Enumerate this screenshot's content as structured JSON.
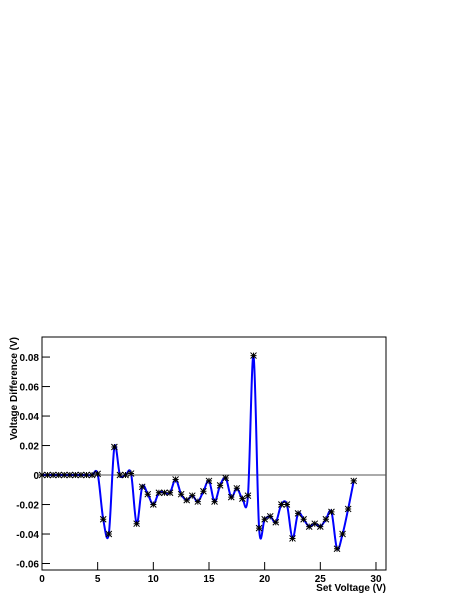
{
  "chart_data": {
    "type": "line",
    "x_label": "Set Voltage (V)",
    "y_label": "Voltage Difference (V)",
    "x": [
      0,
      0.5,
      1,
      1.5,
      2,
      2.5,
      3,
      3.5,
      4,
      4.5,
      5,
      5.5,
      6,
      6.5,
      7,
      7.5,
      8,
      8.5,
      9,
      9.5,
      10,
      10.5,
      11,
      11.5,
      12,
      12.5,
      13,
      13.5,
      14,
      14.5,
      15,
      15.5,
      16,
      16.5,
      17,
      17.5,
      18,
      18.5,
      19,
      19.5,
      20,
      20.5,
      21,
      21.5,
      22,
      22.5,
      23,
      23.5,
      24,
      24.5,
      25,
      25.5,
      26,
      26.5,
      27,
      27.5,
      28
    ],
    "series": [
      {
        "color": "#0000ff",
        "values": [
          0,
          0,
          0,
          0,
          0,
          0,
          0,
          0,
          0,
          0,
          0.0008,
          -0.03,
          -0.04,
          0.019,
          0,
          0,
          0.001,
          -0.033,
          -0.008,
          -0.013,
          -0.02,
          -0.012,
          -0.012,
          -0.012,
          -0.003,
          -0.013,
          -0.017,
          -0.014,
          -0.018,
          -0.011,
          -0.004,
          -0.018,
          -0.007,
          -0.002,
          -0.015,
          -0.009,
          -0.016,
          -0.014,
          0.081,
          -0.036,
          -0.03,
          -0.028,
          -0.032,
          -0.02,
          -0.02,
          -0.043,
          -0.026,
          -0.03,
          -0.035,
          -0.033,
          -0.035,
          -0.03,
          -0.025,
          -0.05,
          -0.04,
          -0.023,
          -0.004
        ]
      }
    ],
    "xlim": [
      0,
      30.9
    ],
    "ylim": [
      -0.0644,
      0.0936
    ],
    "xticks": [
      0,
      5,
      10,
      15,
      20,
      25,
      30
    ],
    "yticks": [
      -0.06,
      -0.04,
      -0.02,
      0,
      0.02,
      0.04,
      0.06,
      0.08
    ],
    "grid": false
  }
}
